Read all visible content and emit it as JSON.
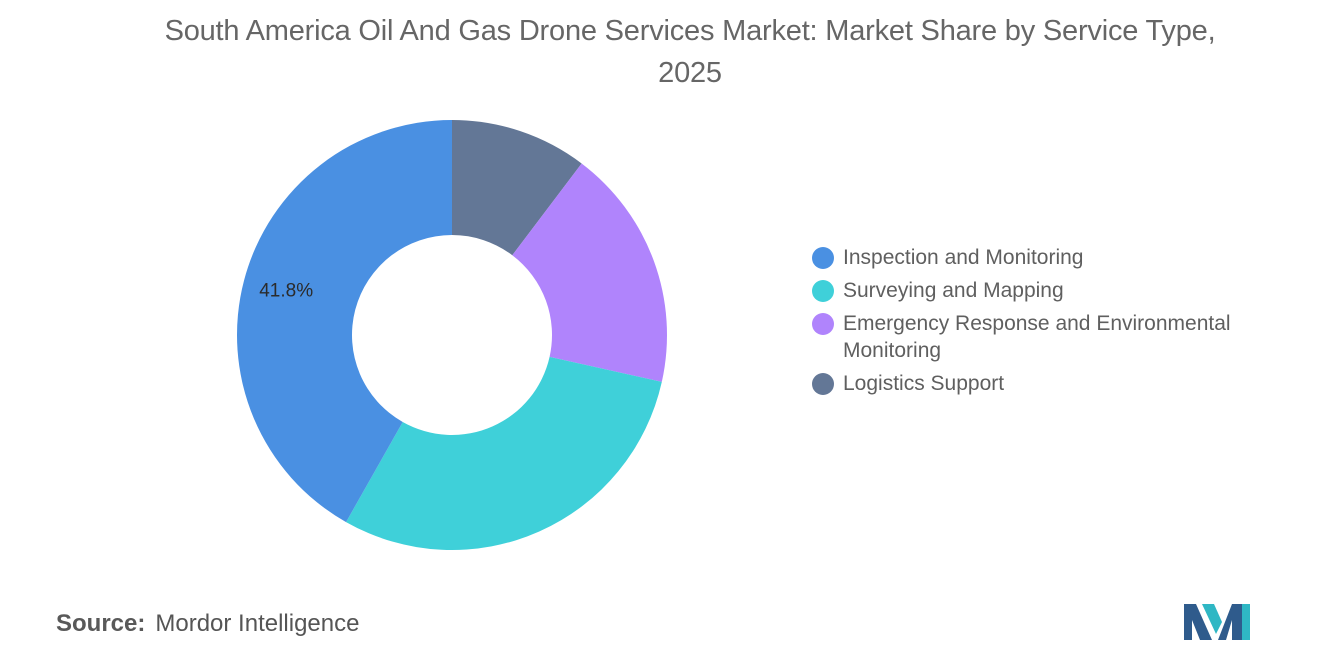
{
  "title": "South America Oil And Gas Drone Services Market: Market Share by Service Type, 2025",
  "source": {
    "label": "Source:",
    "value": "Mordor Intelligence"
  },
  "logo": {
    "icon": "mordor-intelligence-logo-icon",
    "colors": [
      "#2f5b8c",
      "#2fb7c4"
    ]
  },
  "chart_data": {
    "type": "pie",
    "subtype": "donut",
    "categories": [
      "Logistics Support",
      "Emergency Response and Environmental Monitoring",
      "Surveying and Mapping",
      "Inspection and Monitoring"
    ],
    "values": [
      10.3,
      18.2,
      29.7,
      41.8
    ],
    "colors": [
      "#637796",
      "#b084fc",
      "#3fd0d9",
      "#4a90e2"
    ],
    "labels": [
      "",
      "",
      "",
      "41.8%"
    ],
    "start_angle": "12 o'clock",
    "direction": "clockwise",
    "legend": {
      "position": "right",
      "items": [
        {
          "label": "Inspection and Monitoring",
          "color": "#4a90e2"
        },
        {
          "label": "Surveying and Mapping",
          "color": "#3fd0d9"
        },
        {
          "label": "Emergency Response and Environmental Monitoring",
          "color": "#b084fc"
        },
        {
          "label": "Logistics Support",
          "color": "#637796"
        }
      ]
    }
  }
}
